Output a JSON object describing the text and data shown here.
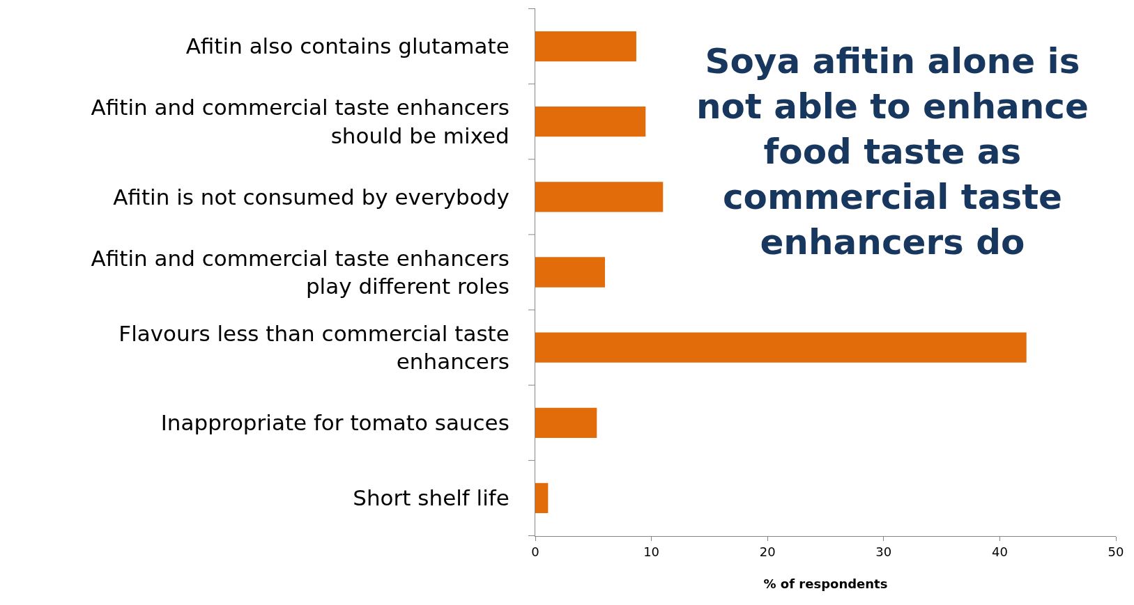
{
  "chart_data": {
    "type": "bar",
    "orientation": "horizontal",
    "title": "Soya afitin alone is not able to enhance food taste as commercial taste enhancers do",
    "categories": [
      "Afitin also contains glutamate",
      "Afitin and commercial taste enhancers should be mixed",
      "Afitin is not consumed by everybody",
      "Afitin and commercial taste enhancers play different roles",
      "Flavours less than commercial taste enhancers",
      "Inappropriate for tomato sauces",
      "Short shelf life"
    ],
    "values": [
      8.7,
      9.5,
      11.0,
      6.0,
      42.3,
      5.3,
      1.1
    ],
    "color": "#e36c0a",
    "xlabel": "% of respondents",
    "xlim": [
      0,
      50
    ],
    "xticks": [
      0,
      10,
      20,
      30,
      40,
      50
    ],
    "legend": false
  }
}
